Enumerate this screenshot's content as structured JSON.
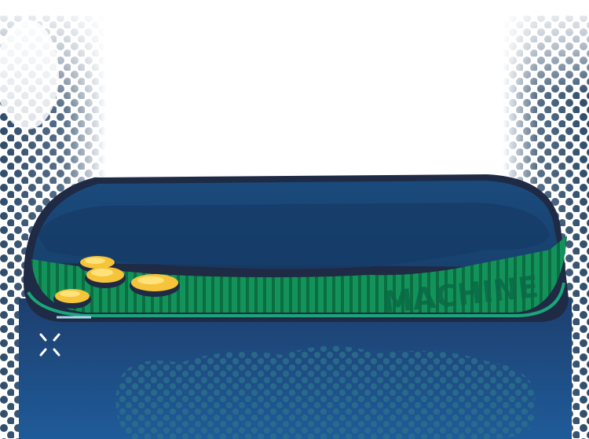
{
  "machine": {
    "label": "MACHINE"
  },
  "coins": {
    "count": 4
  },
  "colors": {
    "background": "#ffffff",
    "halftone_dots": "#3e5b78",
    "machine_top": "#1b4777",
    "machine_outline": "#1f2a44",
    "machine_body": "#1d4f86",
    "conveyor_green": "#0f8a55",
    "conveyor_stripes": "#08713f",
    "coin_gold": "#f5c43a",
    "coin_highlight": "#ffe27a"
  },
  "icons": {
    "sparkle": "sparkle-icon"
  }
}
